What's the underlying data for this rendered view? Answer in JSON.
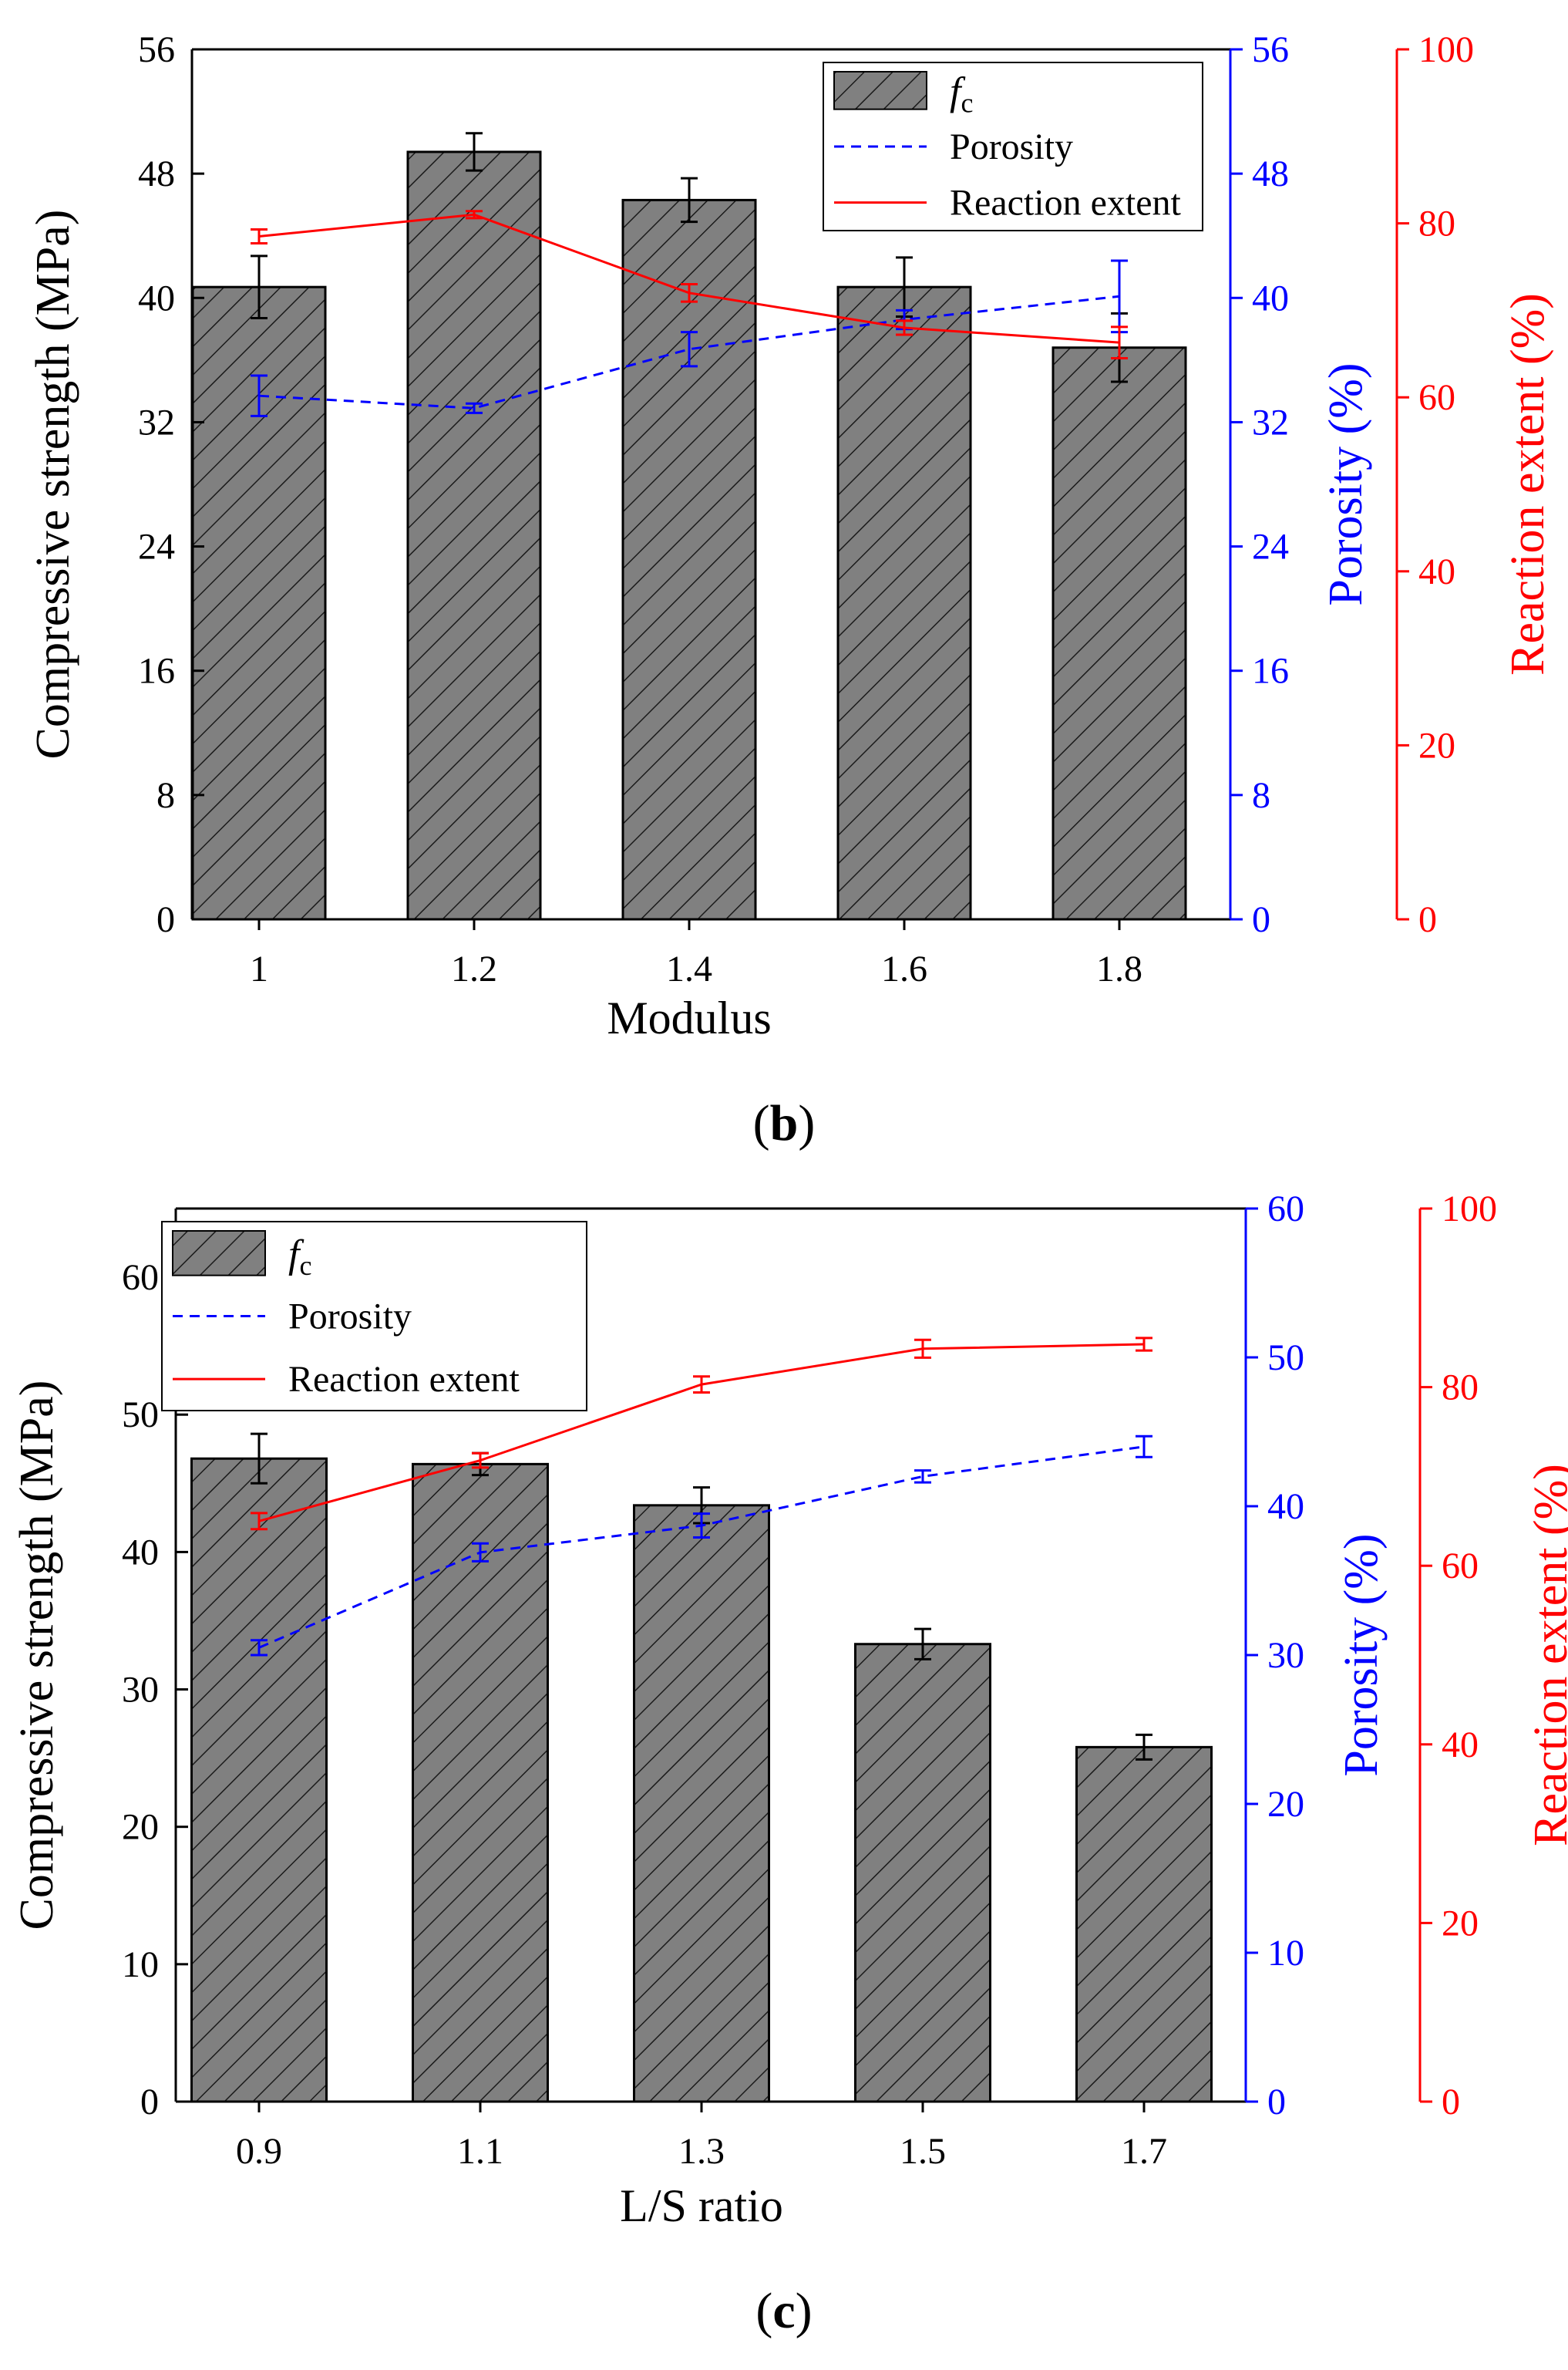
{
  "colors": {
    "bar_fill": "#808080",
    "bar_hatch": "#1a1a1a",
    "axis": "#000000",
    "porosity": "#0000ff",
    "reaction": "#ff0000"
  },
  "chart_data": [
    {
      "type": "bar",
      "panel_label": "b",
      "xlabel": "Modulus",
      "categories": [
        "1",
        "1.2",
        "1.4",
        "1.6",
        "1.8"
      ],
      "ylabel": "Compressive strength (MPa)",
      "ylim": [
        0,
        56
      ],
      "yticks": [
        "0",
        "8",
        "16",
        "24",
        "32",
        "40",
        "48",
        "56"
      ],
      "y2label": "Porosity (%)",
      "y2lim": [
        0,
        56
      ],
      "y2ticks": [
        "0",
        "8",
        "16",
        "24",
        "32",
        "40",
        "48",
        "56"
      ],
      "y3label": "Reaction extent (%)",
      "y3lim": [
        0,
        100
      ],
      "y3ticks": [
        "0",
        "20",
        "40",
        "60",
        "80",
        "100"
      ],
      "legend_position": "top-right",
      "legend": {
        "fc_main": "f",
        "fc_sub": "c",
        "porosity": "Porosity",
        "reaction": "Reaction extent"
      },
      "series": [
        {
          "name": "fc",
          "kind": "bar",
          "axis": "left",
          "values": [
            40.7,
            49.4,
            46.3,
            40.7,
            36.8
          ],
          "errors": [
            2.0,
            1.2,
            1.4,
            1.9,
            2.2
          ]
        },
        {
          "name": "Porosity",
          "kind": "dashed-line",
          "axis": "right1",
          "values": [
            33.7,
            32.9,
            36.7,
            38.6,
            40.1
          ],
          "errors": [
            1.3,
            0.3,
            1.1,
            0.6,
            2.3
          ]
        },
        {
          "name": "Reaction extent",
          "kind": "line",
          "axis": "right2",
          "values": [
            78.5,
            81.0,
            72.0,
            68.0,
            66.3
          ],
          "errors": [
            0.8,
            0.4,
            1.0,
            0.8,
            1.8
          ]
        }
      ]
    },
    {
      "type": "bar",
      "panel_label": "c",
      "xlabel": "L/S ratio",
      "categories": [
        "0.9",
        "1.1",
        "1.3",
        "1.5",
        "1.7"
      ],
      "ylabel": "Compressive strength (MPa)",
      "ylim": [
        0,
        65
      ],
      "yticks": [
        "0",
        "10",
        "20",
        "30",
        "40",
        "50",
        "60"
      ],
      "y2label": "Porosity (%)",
      "y2lim": [
        0,
        60
      ],
      "y2ticks": [
        "0",
        "10",
        "20",
        "30",
        "40",
        "50",
        "60"
      ],
      "y3label": "Reaction extent (%)",
      "y3lim": [
        0,
        100
      ],
      "y3ticks": [
        "0",
        "20",
        "40",
        "60",
        "80",
        "100"
      ],
      "legend_position": "top-left",
      "legend": {
        "fc_main": "f",
        "fc_sub": "c",
        "porosity": "Porosity",
        "reaction": "Reaction extent"
      },
      "series": [
        {
          "name": "fc",
          "kind": "bar",
          "axis": "left",
          "values": [
            46.8,
            46.4,
            43.4,
            33.3,
            25.8
          ],
          "errors": [
            1.8,
            0.8,
            1.3,
            1.1,
            0.9
          ]
        },
        {
          "name": "Porosity",
          "kind": "dashed-line",
          "axis": "right1",
          "values": [
            30.5,
            36.9,
            38.7,
            42.0,
            44.0
          ],
          "errors": [
            0.5,
            0.6,
            0.8,
            0.4,
            0.7
          ]
        },
        {
          "name": "Reaction extent",
          "kind": "line",
          "axis": "right2",
          "values": [
            65.0,
            71.8,
            80.3,
            84.3,
            84.8
          ],
          "errors": [
            0.9,
            0.8,
            0.9,
            1.0,
            0.7
          ]
        }
      ]
    }
  ]
}
